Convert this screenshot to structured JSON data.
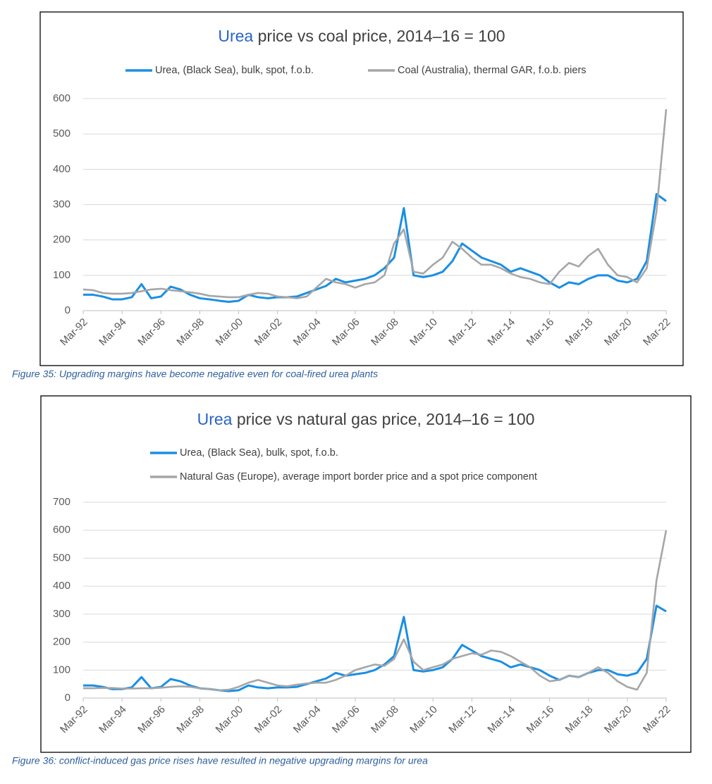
{
  "chart_data": [
    {
      "type": "line",
      "title_highlight": "Urea",
      "title": "price vs coal price, 2014–16 = 100",
      "caption": "Figure 35: Upgrading margins have become negative even for coal-fired urea plants",
      "categories": [
        "Mar-92",
        null,
        null,
        null,
        "Mar-94",
        null,
        null,
        null,
        "Mar-96",
        null,
        null,
        null,
        "Mar-98",
        null,
        null,
        null,
        "Mar-00",
        null,
        null,
        null,
        "Mar-02",
        null,
        null,
        null,
        "Mar-04",
        null,
        null,
        null,
        "Mar-06",
        null,
        null,
        null,
        "Mar-08",
        null,
        null,
        null,
        "Mar-10",
        null,
        null,
        null,
        "Mar-12",
        null,
        null,
        null,
        "Mar-14",
        null,
        null,
        null,
        "Mar-16",
        null,
        null,
        null,
        "Mar-18",
        null,
        null,
        null,
        "Mar-20",
        null,
        null,
        null,
        "Mar-22"
      ],
      "series": [
        {
          "name": "Urea, (Black Sea), bulk, spot, f.o.b.",
          "color": "#1a8fe3",
          "values": [
            45,
            45,
            40,
            32,
            32,
            38,
            75,
            35,
            40,
            68,
            60,
            45,
            35,
            32,
            28,
            25,
            28,
            45,
            38,
            35,
            38,
            38,
            40,
            50,
            60,
            70,
            90,
            80,
            85,
            90,
            100,
            120,
            150,
            290,
            100,
            95,
            100,
            110,
            140,
            190,
            170,
            150,
            140,
            130,
            110,
            120,
            110,
            100,
            80,
            65,
            80,
            75,
            90,
            100,
            100,
            85,
            80,
            90,
            140,
            330,
            310
          ]
        },
        {
          "name": "Coal (Australia), thermal GAR, f.o.b. piers",
          "color": "#a6a6a6",
          "values": [
            60,
            58,
            50,
            48,
            48,
            50,
            55,
            60,
            62,
            58,
            55,
            52,
            48,
            42,
            40,
            38,
            38,
            45,
            50,
            48,
            40,
            38,
            35,
            40,
            65,
            90,
            80,
            75,
            65,
            75,
            80,
            100,
            190,
            230,
            110,
            105,
            130,
            150,
            195,
            175,
            150,
            130,
            130,
            120,
            105,
            95,
            90,
            80,
            75,
            110,
            135,
            125,
            155,
            175,
            130,
            100,
            95,
            80,
            120,
            280,
            570
          ]
        }
      ],
      "ylim": [
        0,
        600
      ],
      "yticks": [
        0,
        100,
        200,
        300,
        400,
        500,
        600
      ],
      "grid": true,
      "legend": "top"
    },
    {
      "type": "line",
      "title_highlight": "Urea",
      "title": "price vs natural gas price, 2014–16 = 100",
      "caption": "Figure 36: conflict-induced gas price rises have resulted in negative upgrading margins for urea",
      "categories": [
        "Mar-92",
        null,
        null,
        null,
        "Mar-94",
        null,
        null,
        null,
        "Mar-96",
        null,
        null,
        null,
        "Mar-98",
        null,
        null,
        null,
        "Mar-00",
        null,
        null,
        null,
        "Mar-02",
        null,
        null,
        null,
        "Mar-04",
        null,
        null,
        null,
        "Mar-06",
        null,
        null,
        null,
        "Mar-08",
        null,
        null,
        null,
        "Mar-10",
        null,
        null,
        null,
        "Mar-12",
        null,
        null,
        null,
        "Mar-14",
        null,
        null,
        null,
        "Mar-16",
        null,
        null,
        null,
        "Mar-18",
        null,
        null,
        null,
        "Mar-20",
        null,
        null,
        null,
        "Mar-22"
      ],
      "series": [
        {
          "name": "Urea, (Black Sea), bulk, spot, f.o.b.",
          "color": "#1a8fe3",
          "values": [
            45,
            45,
            40,
            32,
            32,
            38,
            75,
            35,
            40,
            68,
            60,
            45,
            35,
            32,
            28,
            25,
            28,
            45,
            38,
            35,
            38,
            38,
            40,
            50,
            60,
            70,
            90,
            80,
            85,
            90,
            100,
            120,
            150,
            290,
            100,
            95,
            100,
            110,
            140,
            190,
            170,
            150,
            140,
            130,
            110,
            120,
            110,
            100,
            80,
            65,
            80,
            75,
            90,
            100,
            100,
            85,
            80,
            90,
            140,
            330,
            310
          ]
        },
        {
          "name": "Natural Gas (Europe), average import border price and a spot price component",
          "color": "#a6a6a6",
          "values": [
            35,
            35,
            36,
            36,
            34,
            34,
            35,
            35,
            37,
            40,
            42,
            40,
            35,
            32,
            28,
            30,
            40,
            55,
            65,
            55,
            45,
            42,
            48,
            52,
            55,
            55,
            65,
            80,
            100,
            110,
            120,
            115,
            140,
            210,
            130,
            100,
            110,
            120,
            140,
            150,
            160,
            155,
            170,
            165,
            150,
            130,
            110,
            80,
            60,
            65,
            80,
            75,
            90,
            110,
            90,
            60,
            40,
            30,
            90,
            420,
            600
          ]
        }
      ],
      "ylim": [
        0,
        700
      ],
      "yticks": [
        0,
        100,
        200,
        300,
        400,
        500,
        600,
        700
      ],
      "grid": true,
      "legend": "top"
    }
  ]
}
